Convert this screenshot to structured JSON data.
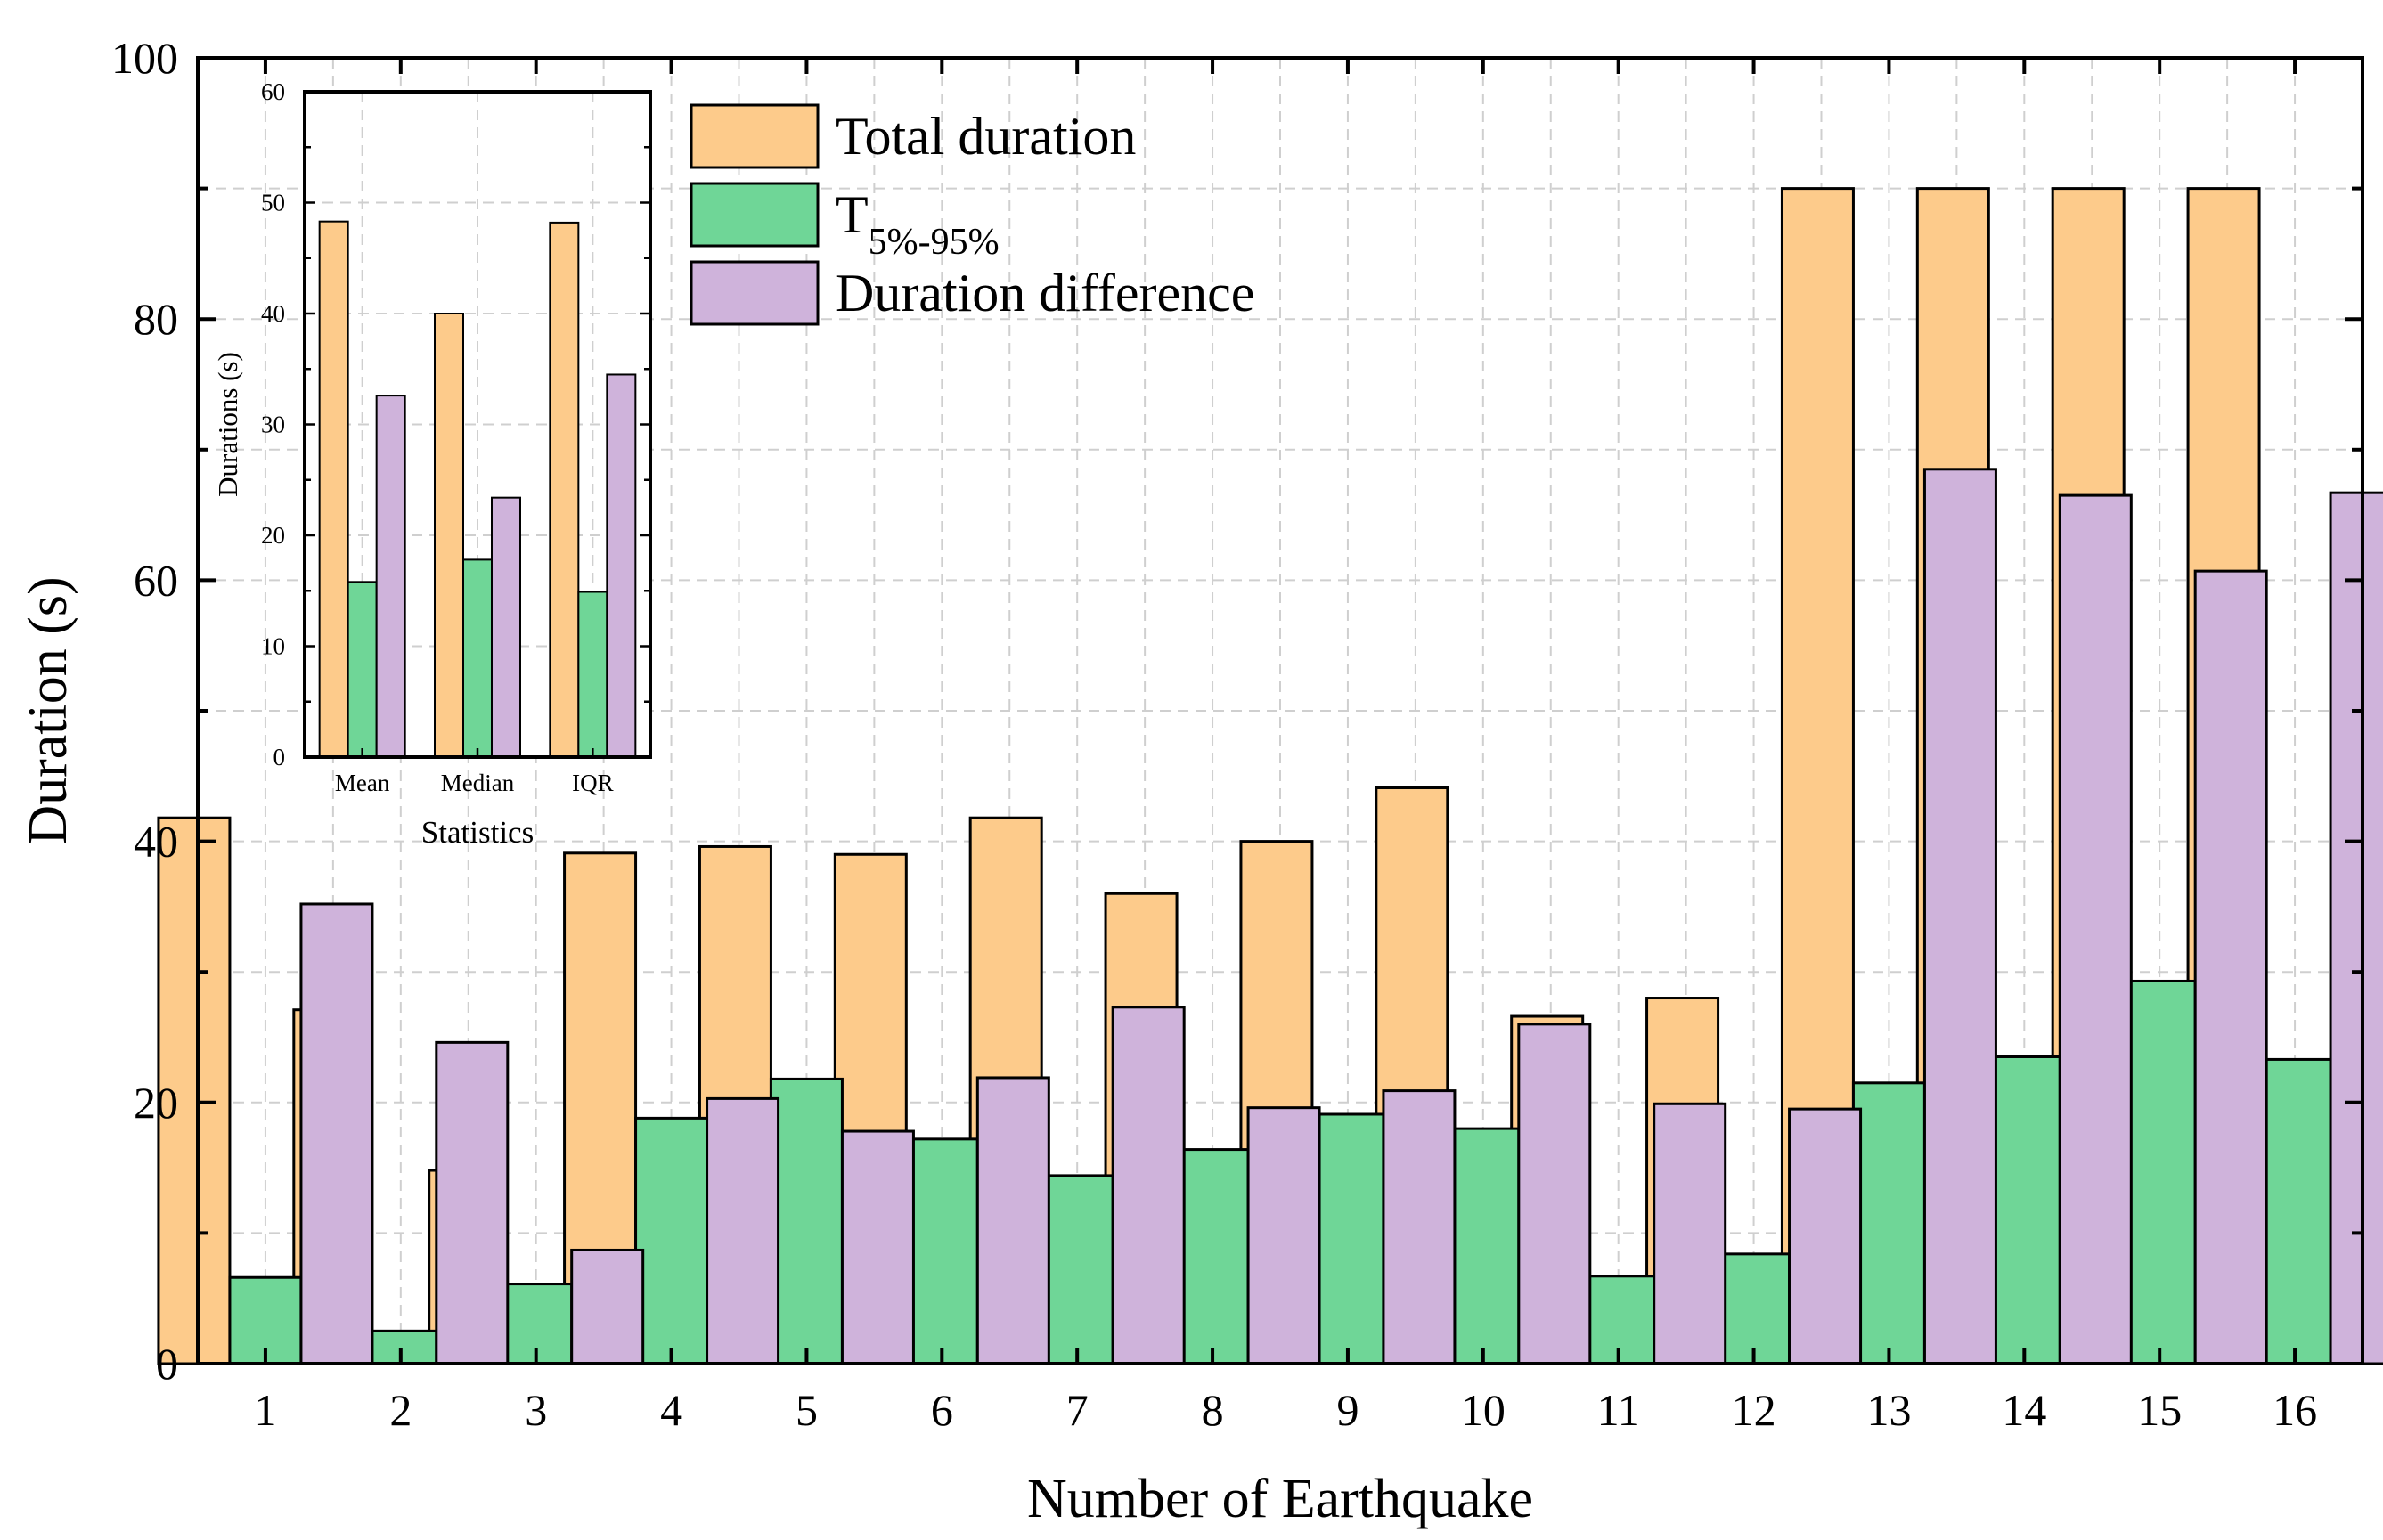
{
  "chart_data": [
    {
      "type": "bar",
      "title": "",
      "xlabel": "Number of Earthquake",
      "ylabel": "Duration (s)",
      "ylim": [
        0,
        100
      ],
      "yticks": [
        0,
        20,
        40,
        60,
        80,
        100
      ],
      "grid": true,
      "categories": [
        "1",
        "2",
        "3",
        "4",
        "5",
        "6",
        "7",
        "8",
        "9",
        "10",
        "11",
        "12",
        "13",
        "14",
        "15",
        "16"
      ],
      "series": [
        {
          "name": "Total duration",
          "color": "#fdcb8b",
          "values": [
            41.8,
            27.1,
            14.8,
            39.1,
            39.6,
            39.0,
            41.8,
            36.0,
            40.0,
            44.1,
            26.6,
            28.0,
            90.0,
            90.0,
            90.0,
            90.0
          ]
        },
        {
          "name": "T5%-95%",
          "color": "#6fd697",
          "values": [
            6.6,
            2.5,
            6.1,
            18.8,
            21.8,
            17.2,
            14.4,
            16.4,
            19.1,
            18.0,
            6.7,
            8.4,
            21.5,
            23.5,
            29.3,
            23.3
          ]
        },
        {
          "name": "Duration difference",
          "color": "#cfb3db",
          "values": [
            35.2,
            24.6,
            8.7,
            20.3,
            17.8,
            21.9,
            27.3,
            19.6,
            20.9,
            26.0,
            19.9,
            19.5,
            68.5,
            66.5,
            60.7,
            66.7
          ]
        }
      ],
      "legend": {
        "position": "top-left",
        "entries": [
          {
            "label": "Total duration"
          },
          {
            "label": "T",
            "sub": "5%-95%"
          },
          {
            "label": "Duration difference"
          }
        ]
      }
    },
    {
      "type": "bar",
      "title": "",
      "xlabel": "Statistics",
      "ylabel": "Durations (s)",
      "ylim": [
        0,
        60
      ],
      "yticks": [
        0,
        10,
        20,
        30,
        40,
        50,
        60
      ],
      "grid": true,
      "categories": [
        "Mean",
        "Median",
        "IQR"
      ],
      "series": [
        {
          "name": "Total duration",
          "color": "#fdcb8b",
          "values": [
            48.3,
            40.0,
            48.2
          ]
        },
        {
          "name": "T5%-95%",
          "color": "#6fd697",
          "values": [
            15.8,
            17.8,
            14.9
          ]
        },
        {
          "name": "Duration difference",
          "color": "#cfb3db",
          "values": [
            32.6,
            23.4,
            34.5
          ]
        }
      ]
    }
  ]
}
